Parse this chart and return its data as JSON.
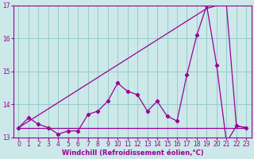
{
  "x": [
    0,
    1,
    2,
    3,
    4,
    5,
    6,
    7,
    8,
    9,
    10,
    11,
    12,
    13,
    14,
    15,
    16,
    17,
    18,
    19,
    20,
    21,
    22,
    23
  ],
  "y_jagged": [
    13.3,
    13.6,
    13.4,
    13.3,
    13.1,
    13.2,
    13.2,
    13.7,
    13.8,
    14.1,
    14.65,
    14.4,
    14.3,
    13.8,
    14.1,
    13.65,
    13.5,
    14.9,
    16.1,
    17.0,
    15.2,
    12.85,
    13.35,
    13.3
  ],
  "y_diag": [
    13.3,
    13.49,
    13.68,
    13.87,
    14.06,
    14.25,
    14.44,
    14.63,
    14.82,
    15.01,
    15.2,
    15.39,
    15.58,
    15.77,
    15.96,
    16.15,
    16.34,
    16.53,
    16.72,
    16.91,
    17.0,
    17.0,
    13.35,
    13.3
  ],
  "y_horiz": [
    13.3,
    13.3,
    13.3,
    13.3,
    13.3,
    13.3,
    13.3,
    13.3,
    13.3,
    13.3,
    13.3,
    13.3,
    13.3,
    13.3,
    13.3,
    13.3,
    13.3,
    13.3,
    13.3,
    13.3,
    13.3,
    13.3,
    13.3,
    13.3
  ],
  "color": "#990099",
  "bg_color": "#cce8e8",
  "grid_color": "#99cccc",
  "xlabel": "Windchill (Refroidissement éolien,°C)",
  "ylim": [
    13.0,
    17.0
  ],
  "xlim": [
    -0.5,
    23.5
  ],
  "yticks": [
    13,
    14,
    15,
    16,
    17
  ],
  "xticks": [
    0,
    1,
    2,
    3,
    4,
    5,
    6,
    7,
    8,
    9,
    10,
    11,
    12,
    13,
    14,
    15,
    16,
    17,
    18,
    19,
    20,
    21,
    22,
    23
  ],
  "tick_fontsize": 5.5,
  "label_fontsize": 6.0
}
